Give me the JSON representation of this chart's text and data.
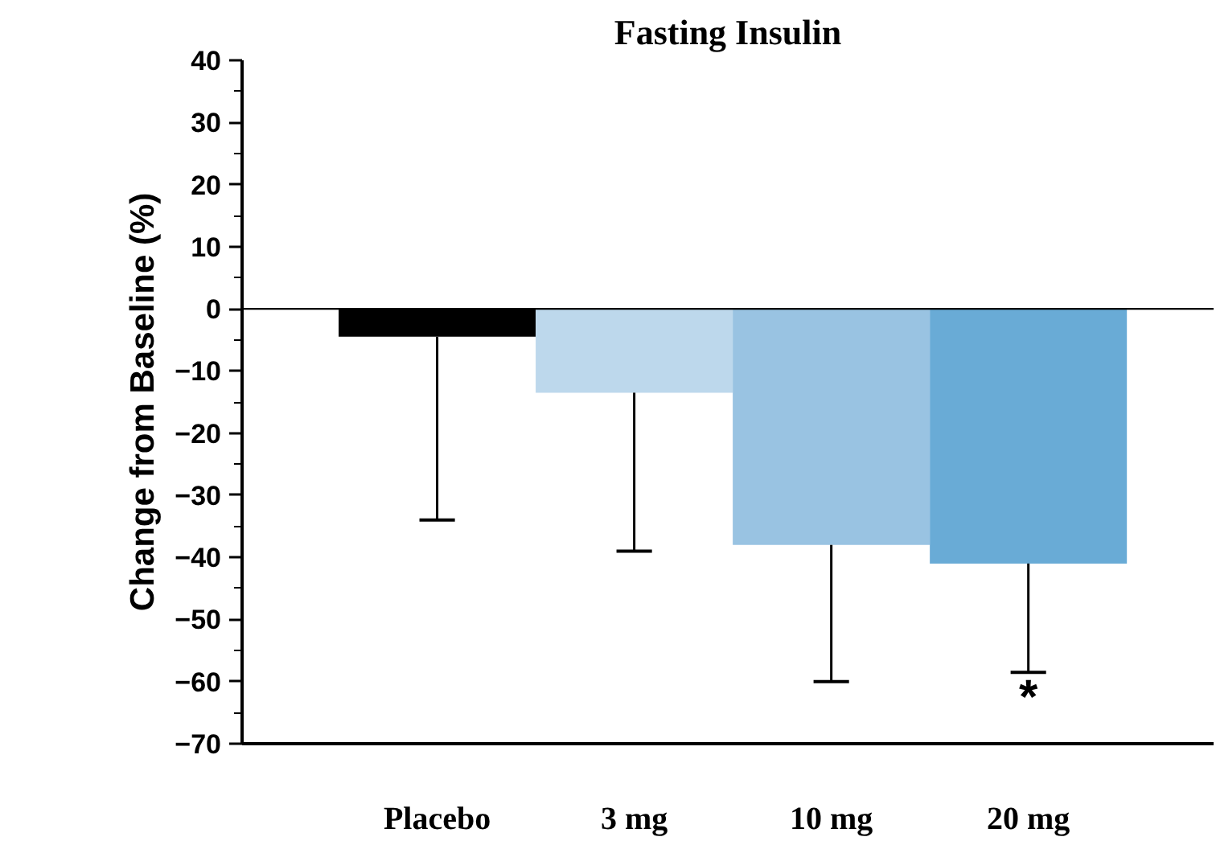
{
  "chart_data": {
    "type": "bar",
    "title": "Fasting Insulin",
    "ylabel": "Change from Baseline (%)",
    "categories": [
      "Placebo",
      "3 mg",
      "10 mg",
      "20 mg"
    ],
    "values": [
      -4.5,
      -13.5,
      -38,
      -41
    ],
    "colors": [
      "#000000",
      "#bdd8ec",
      "#99c3e2",
      "#69abd6"
    ],
    "errors": [
      [
        -34,
        -4.5
      ],
      [
        -39,
        -13.5
      ],
      [
        -60,
        -38
      ],
      [
        -58.5,
        -41
      ]
    ],
    "ylim": [
      -70,
      40
    ],
    "yticks": [
      -70,
      -60,
      -50,
      -40,
      -30,
      -20,
      -10,
      0,
      10,
      20,
      30,
      40
    ],
    "ref_lines": [
      {
        "axis": "y",
        "value": 0
      }
    ],
    "annotations": [
      "*"
    ]
  }
}
